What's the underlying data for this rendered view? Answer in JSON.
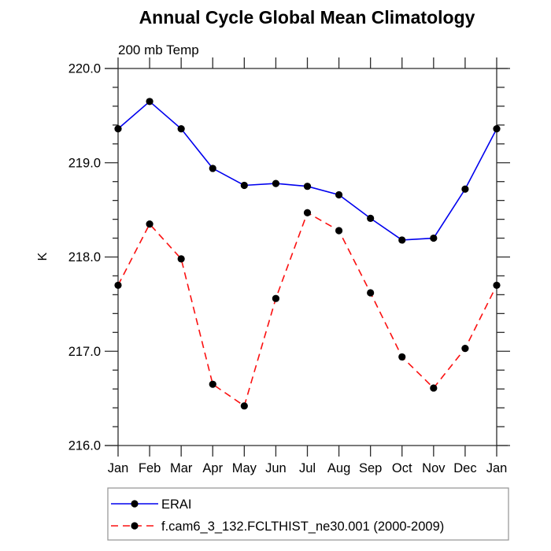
{
  "title": "Annual Cycle Global Mean Climatology",
  "subtitle": "200 mb Temp",
  "ylabel": "K",
  "chart_data": {
    "type": "line",
    "categories": [
      "Jan",
      "Feb",
      "Mar",
      "Apr",
      "May",
      "Jun",
      "Jul",
      "Aug",
      "Sep",
      "Oct",
      "Nov",
      "Dec",
      "Jan"
    ],
    "series": [
      {
        "name": "ERAI",
        "color": "#0000ee",
        "line_style": "solid",
        "values": [
          219.36,
          219.65,
          219.36,
          218.94,
          218.76,
          218.78,
          218.75,
          218.66,
          218.41,
          218.18,
          218.2,
          218.72,
          219.36
        ]
      },
      {
        "name": "f.cam6_3_132.FCLTHIST_ne30.001 (2000-2009)",
        "color": "#fb1010",
        "line_style": "dashed",
        "values": [
          217.7,
          218.35,
          217.98,
          216.65,
          216.42,
          217.56,
          218.47,
          218.28,
          217.62,
          216.94,
          216.61,
          217.03,
          217.7
        ]
      }
    ],
    "ylim": [
      216.0,
      220.0
    ],
    "y_major_step": 1.0,
    "y_minor_step": 0.2,
    "y_tick_format_decimals": 1,
    "marker": {
      "shape": "circle",
      "color": "#000000",
      "radius": 4.6
    },
    "grid": false,
    "legend_position": "bottom",
    "axis_color": "#2b2b2b"
  }
}
